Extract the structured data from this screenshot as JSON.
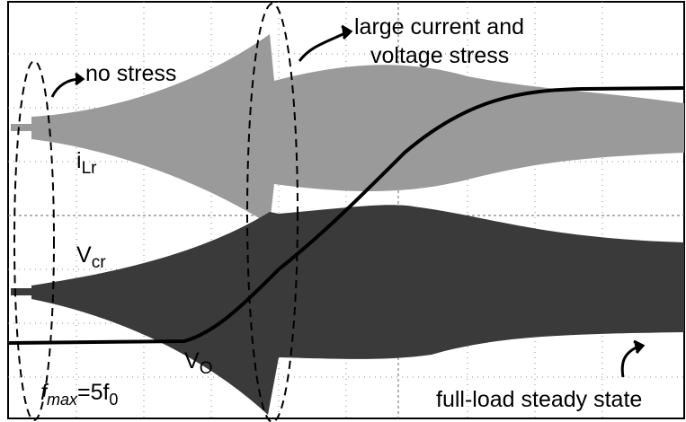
{
  "labels": {
    "no_stress": "no stress",
    "large_stress_line1": "large current and",
    "large_stress_line2": "voltage stress",
    "ilr": {
      "main": "i",
      "sub": "Lr"
    },
    "vcr": {
      "main": "V",
      "sub": "cr"
    },
    "vo": {
      "main": "V",
      "sub": "O"
    },
    "fmax": {
      "f1": "f",
      "sub1": "max",
      "mid": "=5f",
      "sub2": "0"
    },
    "steady": "full-load steady state"
  }
}
